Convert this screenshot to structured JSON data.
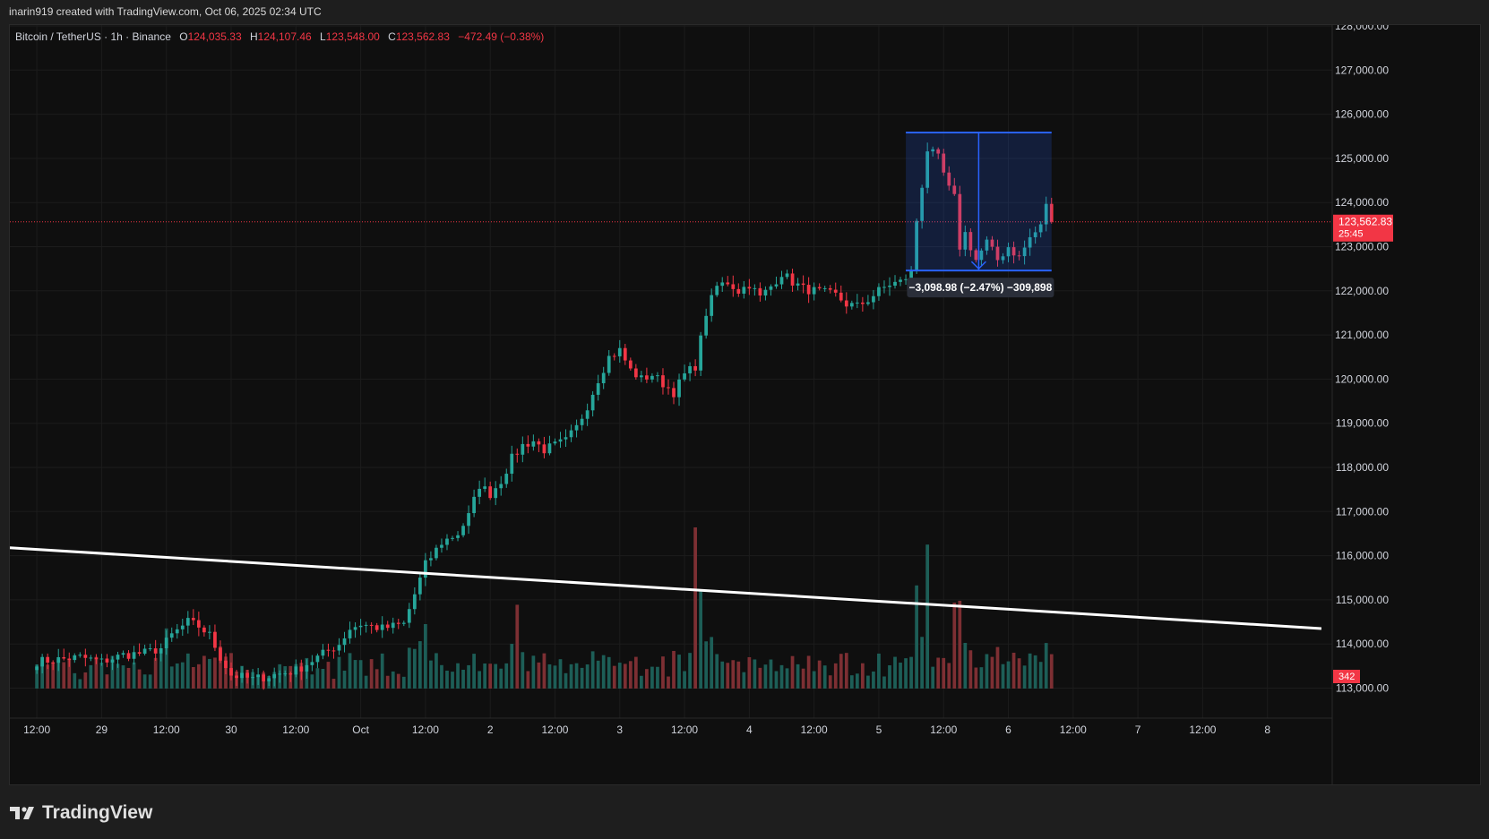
{
  "caption": "inarin919 created with TradingView.com, Oct 06, 2025 02:34 UTC",
  "legend": {
    "symbol": "Bitcoin / TetherUS · 1h · Binance",
    "o_label": "O",
    "o_value": "124,035.33",
    "h_label": "H",
    "h_value": "124,107.46",
    "l_label": "L",
    "l_value": "123,548.00",
    "c_label": "C",
    "c_value": "123,562.83",
    "change": "−472.49 (−0.38%)"
  },
  "brand": "TradingView",
  "colors": {
    "up": "#26a69a",
    "down": "#f23645",
    "bg": "#0f0f0f",
    "measure": "#2962ff"
  },
  "chart_data": {
    "type": "candlestick",
    "symbol": "Bitcoin / TetherUS",
    "interval": "1h",
    "exchange": "Binance",
    "y_ticks": [
      "113,000.00",
      "114,000.00",
      "115,000.00",
      "116,000.00",
      "117,000.00",
      "118,000.00",
      "119,000.00",
      "120,000.00",
      "121,000.00",
      "122,000.00",
      "123,000.00",
      "124,000.00",
      "125,000.00",
      "126,000.00",
      "127,000.00",
      "128,000.00"
    ],
    "y_tick_values": [
      113000,
      114000,
      115000,
      116000,
      117000,
      118000,
      119000,
      120000,
      121000,
      122000,
      123000,
      124000,
      125000,
      126000,
      127000,
      128000
    ],
    "ylim": [
      112990,
      128020
    ],
    "x_ticks": [
      "12:00",
      "29",
      "12:00",
      "30",
      "12:00",
      "Oct",
      "12:00",
      "2",
      "12:00",
      "3",
      "12:00",
      "4",
      "12:00",
      "5",
      "12:00",
      "6",
      "12:00",
      "7",
      "12:00",
      "8"
    ],
    "x_tick_hours": [
      0,
      12,
      24,
      36,
      48,
      60,
      72,
      84,
      96,
      108,
      120,
      132,
      144,
      156,
      168,
      180,
      192,
      204,
      216,
      228
    ],
    "x_range_hours": [
      -5,
      240
    ],
    "last_price": "123,562.83",
    "last_price_value": 123562.83,
    "countdown": "25:45",
    "last_volume": "342",
    "measure_label": "−3,098.98 (−2.47%) −309,898",
    "measure_box": {
      "t0": 161,
      "t1": 188,
      "high": 125585,
      "low": 122460,
      "from": 125585,
      "to": 122460
    },
    "trendline": {
      "t0": -5,
      "p0": 116180,
      "t1": 238,
      "p1": 114350
    },
    "anchors": [
      [
        0,
        113600
      ],
      [
        4,
        113650
      ],
      [
        8,
        113700
      ],
      [
        12,
        113600
      ],
      [
        16,
        113750
      ],
      [
        20,
        113800
      ],
      [
        23,
        113900
      ],
      [
        25,
        114200
      ],
      [
        28,
        114500
      ],
      [
        30,
        114400
      ],
      [
        32,
        114200
      ],
      [
        34,
        113700
      ],
      [
        36,
        113300
      ],
      [
        40,
        113200
      ],
      [
        44,
        113300
      ],
      [
        48,
        113400
      ],
      [
        52,
        113700
      ],
      [
        56,
        114000
      ],
      [
        58,
        114350
      ],
      [
        60,
        114450
      ],
      [
        64,
        114350
      ],
      [
        68,
        114450
      ],
      [
        72,
        115800
      ],
      [
        75,
        116300
      ],
      [
        78,
        116500
      ],
      [
        80,
        116900
      ],
      [
        82,
        117600
      ],
      [
        84,
        117400
      ],
      [
        86,
        117700
      ],
      [
        88,
        118200
      ],
      [
        90,
        118500
      ],
      [
        92,
        118600
      ],
      [
        94,
        118400
      ],
      [
        96,
        118500
      ],
      [
        98,
        118600
      ],
      [
        100,
        118900
      ],
      [
        102,
        119400
      ],
      [
        104,
        120000
      ],
      [
        106,
        120500
      ],
      [
        108,
        120650
      ],
      [
        110,
        120200
      ],
      [
        112,
        120000
      ],
      [
        114,
        120100
      ],
      [
        116,
        119900
      ],
      [
        118,
        119700
      ],
      [
        120,
        120100
      ],
      [
        122,
        120300
      ],
      [
        124,
        121500
      ],
      [
        126,
        122100
      ],
      [
        128,
        122200
      ],
      [
        130,
        122000
      ],
      [
        132,
        122150
      ],
      [
        134,
        121850
      ],
      [
        136,
        122100
      ],
      [
        138,
        122400
      ],
      [
        140,
        122200
      ],
      [
        142,
        122050
      ],
      [
        144,
        122000
      ],
      [
        146,
        121950
      ],
      [
        148,
        121900
      ],
      [
        150,
        121700
      ],
      [
        152,
        121650
      ],
      [
        154,
        121800
      ],
      [
        156,
        122000
      ],
      [
        158,
        122150
      ],
      [
        160,
        122200
      ],
      [
        162,
        122400
      ],
      [
        163,
        123600
      ],
      [
        165,
        125200
      ],
      [
        167,
        125000
      ],
      [
        169,
        124300
      ],
      [
        170,
        124100
      ],
      [
        171,
        123000
      ],
      [
        172,
        123300
      ],
      [
        174,
        122700
      ],
      [
        176,
        123100
      ],
      [
        178,
        122700
      ],
      [
        180,
        123000
      ],
      [
        182,
        122750
      ],
      [
        184,
        123200
      ],
      [
        186,
        123450
      ],
      [
        187,
        124000
      ],
      [
        188,
        123560
      ]
    ],
    "volume_spikes": [
      {
        "t": 122,
        "v": 3.75
      },
      {
        "t": 123,
        "v": 2.3
      },
      {
        "t": 163,
        "v": 2.4
      },
      {
        "t": 165,
        "v": 3.35
      },
      {
        "t": 170,
        "v": 2.0
      },
      {
        "t": 72,
        "v": 1.5
      },
      {
        "t": 89,
        "v": 1.95
      },
      {
        "t": 24,
        "v": 1.4
      }
    ]
  }
}
